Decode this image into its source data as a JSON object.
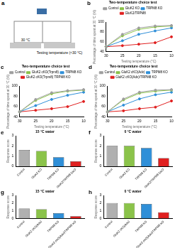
{
  "schematic": {
    "panel_label": "a",
    "texts": [
      "30 °C",
      "Testing temperature (<30 °C)"
    ]
  },
  "chart_data": [
    {
      "panel_label": "b",
      "type": "line",
      "title": "Two-temperature choice test",
      "x_label": "Testing temperature (°C)",
      "y_label": "Percentage of time spent at 30 °C (%)",
      "categories": [
        "30",
        "25",
        "20",
        "15",
        "10"
      ],
      "series": [
        {
          "name": "Control",
          "color": "#9e9e9e",
          "values": [
            50,
            75,
            88,
            92,
            93
          ]
        },
        {
          "name": "GluK2 KO",
          "color": "#8bc34a",
          "values": [
            50,
            72,
            85,
            90,
            92
          ]
        },
        {
          "name": "TRPM8 KO",
          "color": "#2f8fd8",
          "values": [
            50,
            62,
            75,
            82,
            88
          ]
        },
        {
          "name": "GluK2/TRPM8",
          "color": "#e02020",
          "values": [
            50,
            52,
            55,
            58,
            70
          ]
        }
      ],
      "ylim": [
        40,
        100
      ],
      "yticks": [
        40,
        60,
        80,
        100
      ],
      "grid": false,
      "legend": "top",
      "marker": "circle"
    },
    {
      "panel_label": "c",
      "type": "line",
      "title": "Two-temperature choice test",
      "x_label": "Testing temperature (°C)",
      "y_label": "Percentage of time spent at 30 °C (%)",
      "categories": [
        "30",
        "25",
        "20",
        "15",
        "10"
      ],
      "series": [
        {
          "name": "Control",
          "color": "#9e9e9e",
          "values": [
            50,
            74,
            87,
            91,
            93
          ]
        },
        {
          "name": "GluK2 cKO(Trpm8)",
          "color": "#8bc34a",
          "values": [
            50,
            72,
            85,
            90,
            92
          ]
        },
        {
          "name": "TRPM8 KO",
          "color": "#2f8fd8",
          "values": [
            50,
            62,
            74,
            82,
            88
          ]
        },
        {
          "name": "GluK2 cKO(Trpm8) TRPM8 KO",
          "color": "#e02020",
          "values": [
            50,
            53,
            56,
            60,
            70
          ]
        }
      ],
      "ylim": [
        40,
        100
      ],
      "yticks": [
        40,
        60,
        80,
        100
      ],
      "grid": false,
      "legend": "top",
      "marker": "circle"
    },
    {
      "panel_label": "d",
      "type": "line",
      "title": "Two-temperature choice test",
      "x_label": "Testing temperature (°C)",
      "y_label": "Percentage of time spent at 30 °C (%)",
      "categories": [
        "30",
        "25",
        "20",
        "15",
        "10"
      ],
      "series": [
        {
          "name": "Control",
          "color": "#9e9e9e",
          "values": [
            50,
            75,
            88,
            92,
            93
          ]
        },
        {
          "name": "GluK2 cKO(Adv)",
          "color": "#8bc34a",
          "values": [
            50,
            73,
            86,
            90,
            92
          ]
        },
        {
          "name": "TRPM8 KO",
          "color": "#2f8fd8",
          "values": [
            50,
            63,
            75,
            83,
            88
          ]
        },
        {
          "name": "GluK2 cKO(Adv)/TRPM8 KO",
          "color": "#e02020",
          "values": [
            50,
            52,
            56,
            59,
            71
          ]
        }
      ],
      "ylim": [
        40,
        100
      ],
      "yticks": [
        40,
        60,
        80,
        100
      ],
      "grid": false,
      "legend": "top",
      "marker": "circle"
    },
    {
      "panel_label": "e",
      "type": "bar",
      "title": "15 °C water",
      "y_label": "Response score",
      "categories": [
        "Control",
        "GluK2 KO",
        "TRPM8 KO",
        "GluK2/TRPM8 DKO"
      ],
      "values": [
        1.6,
        1.5,
        0.9,
        0.5
      ],
      "colors": [
        "#b0b0b0",
        "#8bc34a",
        "#2f8fd8",
        "#e02020"
      ],
      "ylim": [
        0,
        3
      ],
      "yticks": [
        0,
        1,
        2,
        3
      ],
      "grid": false
    },
    {
      "panel_label": "f",
      "type": "bar",
      "title": "0 °C water",
      "y_label": "Response score",
      "categories": [
        "Control",
        "GluK2 KO",
        "TRPM8 KO",
        "GluK2/TRPM8 DKO"
      ],
      "values": [
        2.0,
        2.0,
        1.8,
        0.8
      ],
      "colors": [
        "#b0b0b0",
        "#8bc34a",
        "#2f8fd8",
        "#e02020"
      ],
      "ylim": [
        0,
        3
      ],
      "yticks": [
        0,
        1,
        2,
        3
      ],
      "grid": false
    },
    {
      "panel_label": "g",
      "type": "bar",
      "title": "15 °C water",
      "y_label": "Response score",
      "categories": [
        "Control",
        "GluK2 cKO(Adv)",
        "TRPM8 KO",
        "GluK2 cKO(Adv)/TRPM8 KO"
      ],
      "values": [
        1.3,
        1.2,
        0.7,
        0.3
      ],
      "colors": [
        "#b0b0b0",
        "#8bc34a",
        "#2f8fd8",
        "#e02020"
      ],
      "ylim": [
        0,
        3
      ],
      "yticks": [
        0,
        1,
        2,
        3
      ],
      "grid": false
    },
    {
      "panel_label": "h",
      "type": "bar",
      "title": "0 °C water",
      "y_label": "Response score",
      "categories": [
        "Control",
        "GluK2 cKO(Adv)",
        "TRPM8 KO",
        "GluK2 cKO(Adv)/TRPM8 KO"
      ],
      "values": [
        2.0,
        2.0,
        1.9,
        0.8
      ],
      "colors": [
        "#b0b0b0",
        "#8bc34a",
        "#2f8fd8",
        "#e02020"
      ],
      "ylim": [
        0,
        3
      ],
      "yticks": [
        0,
        1,
        2,
        3
      ],
      "grid": false
    }
  ]
}
